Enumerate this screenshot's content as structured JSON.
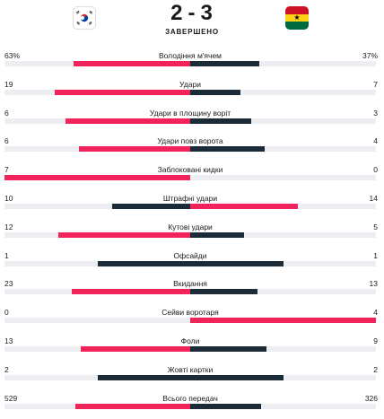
{
  "match": {
    "home_score": "2",
    "away_score": "3",
    "separator": "-",
    "status": "ЗАВЕРШЕНО",
    "home_flag": "south-korea-flag",
    "away_flag": "ghana-flag"
  },
  "colors": {
    "home_bar": "#f0245a",
    "away_bar": "#1b2b38",
    "track": "#eceef1",
    "ghana_red": "#ce1126",
    "ghana_yellow": "#fcd116",
    "ghana_green": "#006b3f",
    "korea_red": "#cd2e3a",
    "korea_blue": "#0047a0"
  },
  "stats": [
    {
      "label": "Володіння м'ячем",
      "home": "63%",
      "away": "37%",
      "home_share": 0.63,
      "away_share": 0.37,
      "leader": "home"
    },
    {
      "label": "Удари",
      "home": "19",
      "away": "7",
      "home_share": 0.73,
      "away_share": 0.27,
      "leader": "home"
    },
    {
      "label": "Удари в площину воріт",
      "home": "6",
      "away": "3",
      "home_share": 0.67,
      "away_share": 0.33,
      "leader": "home"
    },
    {
      "label": "Удари повз ворота",
      "home": "6",
      "away": "4",
      "home_share": 0.6,
      "away_share": 0.4,
      "leader": "home"
    },
    {
      "label": "Заблоковані кидки",
      "home": "7",
      "away": "0",
      "home_share": 1.0,
      "away_share": 0.0,
      "leader": "home"
    },
    {
      "label": "Штрафні удари",
      "home": "10",
      "away": "14",
      "home_share": 0.42,
      "away_share": 0.58,
      "leader": "away"
    },
    {
      "label": "Кутові удари",
      "home": "12",
      "away": "5",
      "home_share": 0.71,
      "away_share": 0.29,
      "leader": "home"
    },
    {
      "label": "Офсайди",
      "home": "1",
      "away": "1",
      "home_share": 0.5,
      "away_share": 0.5,
      "leader": "none"
    },
    {
      "label": "Вкидання",
      "home": "23",
      "away": "13",
      "home_share": 0.64,
      "away_share": 0.36,
      "leader": "home"
    },
    {
      "label": "Сейви воротаря",
      "home": "0",
      "away": "4",
      "home_share": 0.0,
      "away_share": 1.0,
      "leader": "away"
    },
    {
      "label": "Фоли",
      "home": "13",
      "away": "9",
      "home_share": 0.59,
      "away_share": 0.41,
      "leader": "home"
    },
    {
      "label": "Жовті картки",
      "home": "2",
      "away": "2",
      "home_share": 0.5,
      "away_share": 0.5,
      "leader": "none"
    },
    {
      "label": "Всього передач",
      "home": "529",
      "away": "326",
      "home_share": 0.62,
      "away_share": 0.38,
      "leader": "home"
    }
  ]
}
